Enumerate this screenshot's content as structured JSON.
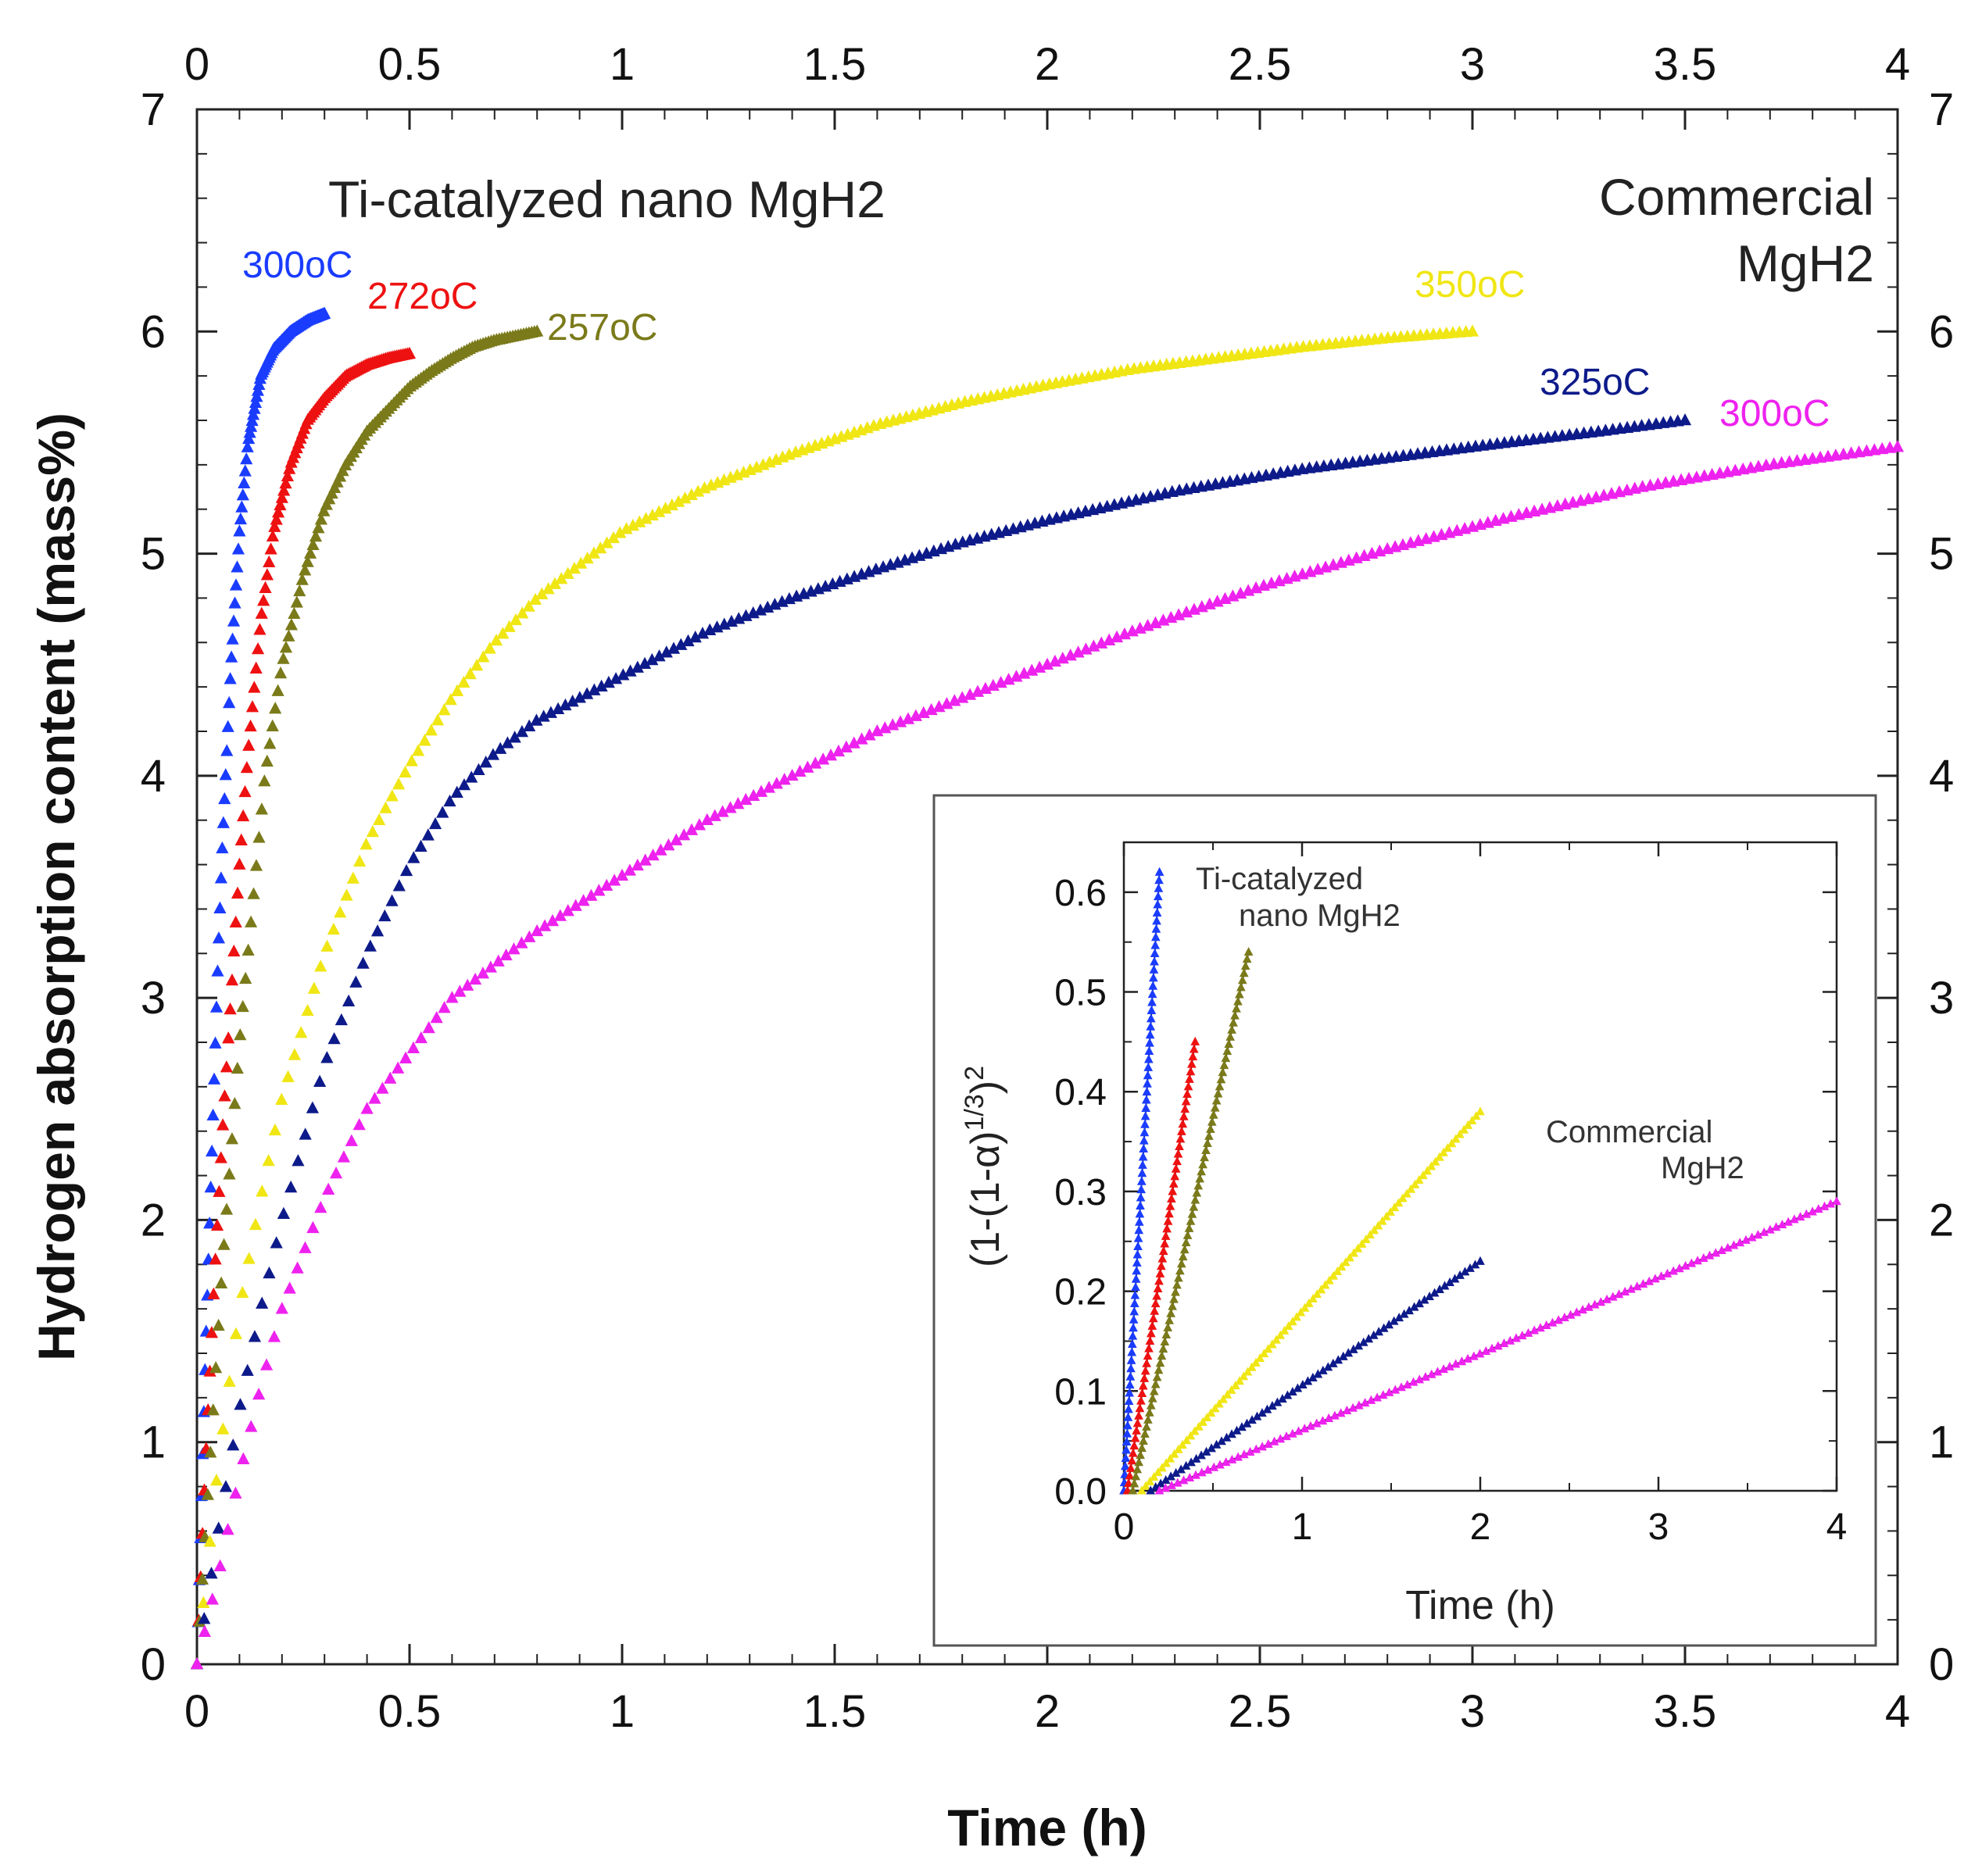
{
  "chart_data": [
    {
      "type": "scatter",
      "name": "main",
      "xlabel": "Time (h)",
      "ylabel": "Hydrogen absorption content (mass%)",
      "xlim": [
        0,
        4
      ],
      "ylim": [
        0,
        7
      ],
      "x_ticks": [
        "0",
        "0.5",
        "1",
        "1.5",
        "2",
        "2.5",
        "3",
        "3.5",
        "4"
      ],
      "y_ticks": [
        "0",
        "1",
        "2",
        "3",
        "4",
        "5",
        "6",
        "7"
      ],
      "top_x_ticks": [
        "0",
        "0.5",
        "1",
        "1.5",
        "2",
        "2.5",
        "3",
        "3.5",
        "4"
      ],
      "right_y_ticks": [
        "0",
        "1",
        "2",
        "3",
        "4",
        "5",
        "6",
        "7"
      ],
      "group_labels": {
        "ti": "Ti-catalyzed nano MgH2",
        "commercial_line1": "Commercial",
        "commercial_line2": "MgH2"
      },
      "series": [
        {
          "name": "Ti-catalyzed 300°C",
          "label": "300oC",
          "color": "#1a3cff",
          "x": [
            0,
            0.01,
            0.02,
            0.03,
            0.04,
            0.05,
            0.06,
            0.08,
            0.1,
            0.12,
            0.15,
            0.18,
            0.22,
            0.26,
            0.3
          ],
          "y": [
            0,
            0.7,
            1.4,
            2.0,
            2.6,
            3.2,
            3.7,
            4.5,
            5.1,
            5.5,
            5.8,
            5.92,
            6.0,
            6.05,
            6.08
          ]
        },
        {
          "name": "Ti-catalyzed 272°C",
          "label": "272oC",
          "color": "#ee1111",
          "x": [
            0,
            0.02,
            0.04,
            0.06,
            0.08,
            0.1,
            0.12,
            0.15,
            0.18,
            0.22,
            0.26,
            0.3,
            0.35,
            0.4,
            0.45,
            0.5
          ],
          "y": [
            0,
            0.9,
            1.7,
            2.4,
            3.0,
            3.6,
            4.1,
            4.7,
            5.1,
            5.4,
            5.6,
            5.7,
            5.8,
            5.85,
            5.88,
            5.9
          ]
        },
        {
          "name": "Ti-catalyzed 257°C",
          "label": "257oC",
          "color": "#7a7a1a",
          "x": [
            0,
            0.02,
            0.04,
            0.06,
            0.08,
            0.1,
            0.13,
            0.16,
            0.2,
            0.25,
            0.3,
            0.35,
            0.4,
            0.45,
            0.5,
            0.55,
            0.6,
            0.65,
            0.7,
            0.75,
            0.8
          ],
          "y": [
            0,
            0.6,
            1.2,
            1.8,
            2.3,
            2.8,
            3.4,
            4.0,
            4.5,
            4.9,
            5.2,
            5.4,
            5.55,
            5.65,
            5.75,
            5.82,
            5.88,
            5.93,
            5.96,
            5.98,
            6.0
          ]
        },
        {
          "name": "Commercial 350°C",
          "label": "350oC",
          "color": "#f0e614",
          "x": [
            0,
            0.05,
            0.1,
            0.15,
            0.2,
            0.3,
            0.4,
            0.5,
            0.6,
            0.7,
            0.8,
            1.0,
            1.2,
            1.4,
            1.6,
            1.8,
            2.0,
            2.2,
            2.4,
            2.6,
            2.8,
            3.0
          ],
          "y": [
            0,
            0.9,
            1.6,
            2.1,
            2.55,
            3.2,
            3.7,
            4.05,
            4.35,
            4.6,
            4.8,
            5.1,
            5.3,
            5.45,
            5.58,
            5.68,
            5.76,
            5.83,
            5.88,
            5.93,
            5.97,
            6.0
          ]
        },
        {
          "name": "Commercial 325°C",
          "label": "325oC",
          "color": "#0d1a8a",
          "x": [
            0,
            0.05,
            0.1,
            0.15,
            0.2,
            0.3,
            0.4,
            0.5,
            0.6,
            0.7,
            0.8,
            1.0,
            1.2,
            1.4,
            1.6,
            1.8,
            2.0,
            2.3,
            2.6,
            3.0,
            3.3,
            3.5
          ],
          "y": [
            0,
            0.6,
            1.15,
            1.6,
            2.0,
            2.7,
            3.2,
            3.6,
            3.9,
            4.1,
            4.25,
            4.45,
            4.65,
            4.8,
            4.93,
            5.05,
            5.15,
            5.28,
            5.38,
            5.48,
            5.55,
            5.6
          ]
        },
        {
          "name": "Commercial 300°C",
          "label": "300oC",
          "color": "#ee22ee",
          "x": [
            0,
            0.05,
            0.1,
            0.15,
            0.2,
            0.3,
            0.4,
            0.5,
            0.6,
            0.8,
            1.0,
            1.2,
            1.4,
            1.6,
            1.8,
            2.0,
            2.2,
            2.5,
            2.8,
            3.1,
            3.4,
            3.7,
            4.0
          ],
          "y": [
            0,
            0.4,
            0.85,
            1.25,
            1.6,
            2.1,
            2.5,
            2.75,
            3.0,
            3.3,
            3.55,
            3.8,
            4.0,
            4.2,
            4.35,
            4.5,
            4.65,
            4.85,
            5.02,
            5.17,
            5.3,
            5.4,
            5.48
          ]
        }
      ]
    },
    {
      "type": "scatter",
      "name": "inset",
      "xlabel": "Time (h)",
      "ylabel": "(1-(1-α)1/3)2",
      "ylabel_parts": {
        "base": "(1-(1-α)",
        "exp1": "1/3",
        "close": ")",
        "exp2": "2"
      },
      "xlim": [
        0,
        4
      ],
      "ylim": [
        0,
        0.65
      ],
      "x_ticks": [
        "0",
        "1",
        "2",
        "3",
        "4"
      ],
      "y_ticks": [
        "0.0",
        "0.1",
        "0.2",
        "0.3",
        "0.4",
        "0.5",
        "0.6"
      ],
      "group_labels": {
        "ti_line1": "Ti-catalyzed",
        "ti_line2": "nano MgH2",
        "commercial_line1": "Commercial",
        "commercial_line2": "MgH2"
      },
      "series": [
        {
          "name": "Ti-catalyzed 300°C",
          "color": "#1a3cff",
          "x": [
            0,
            0.2
          ],
          "y": [
            0,
            0.62
          ]
        },
        {
          "name": "Ti-catalyzed 272°C",
          "color": "#ee1111",
          "x": [
            0.02,
            0.4
          ],
          "y": [
            0,
            0.45
          ]
        },
        {
          "name": "Ti-catalyzed 257°C",
          "color": "#7a7a1a",
          "x": [
            0.05,
            0.7
          ],
          "y": [
            0,
            0.54
          ]
        },
        {
          "name": "Commercial 350°C",
          "color": "#f0e614",
          "x": [
            0.1,
            2.0
          ],
          "y": [
            0,
            0.38
          ]
        },
        {
          "name": "Commercial 325°C",
          "color": "#0d1a8a",
          "x": [
            0.15,
            2.0
          ],
          "y": [
            0,
            0.23
          ]
        },
        {
          "name": "Commercial 300°C",
          "color": "#ee22ee",
          "x": [
            0.2,
            4.0
          ],
          "y": [
            0,
            0.29
          ]
        }
      ]
    }
  ]
}
